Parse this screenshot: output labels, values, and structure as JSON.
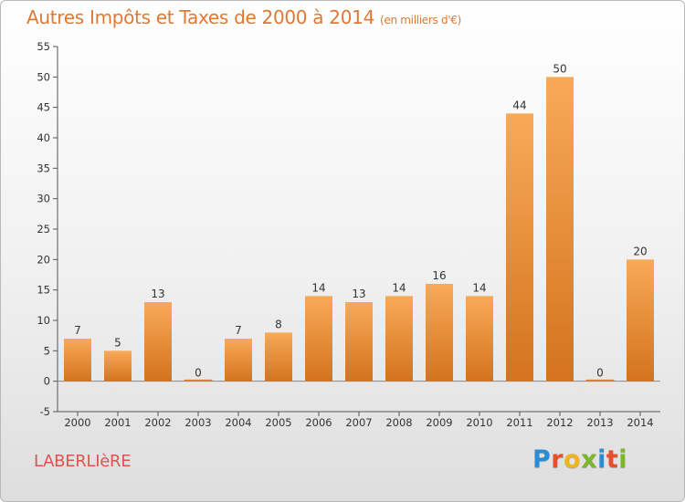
{
  "header": {
    "title": "Autres Impôts et Taxes de 2000 à 2014",
    "unit": "(en milliers d'€)"
  },
  "footer": {
    "commune": "LABERLIèRE",
    "logo_text": "Proxiti",
    "logo_colors": [
      "#2a8dd4",
      "#e8502b",
      "#f1b51c",
      "#7cb629",
      "#2a8dd4",
      "#e8502b",
      "#7cb629"
    ]
  },
  "colors": {
    "title": "#e07833",
    "commune": "#e0524f",
    "bar_light": "#f8aa58",
    "bar_dark": "#d4731d"
  },
  "chart_data": {
    "type": "bar",
    "title": "Autres Impôts et Taxes de 2000 à 2014",
    "subtitle": "(en milliers d'€)",
    "categories": [
      "2000",
      "2001",
      "2002",
      "2003",
      "2004",
      "2005",
      "2006",
      "2007",
      "2008",
      "2009",
      "2010",
      "2011",
      "2012",
      "2013",
      "2014"
    ],
    "values": [
      7,
      5,
      13,
      0,
      7,
      8,
      14,
      13,
      14,
      16,
      14,
      44,
      50,
      0,
      20
    ],
    "data_labels": [
      "7",
      "5",
      "13",
      "0",
      "7",
      "8",
      "14",
      "13",
      "14",
      "16",
      "14",
      "44",
      "50",
      "0",
      "20"
    ],
    "ylim": [
      -5,
      55
    ],
    "yticks": [
      -5,
      0,
      5,
      10,
      15,
      20,
      25,
      30,
      35,
      40,
      45,
      50,
      55
    ],
    "ytick_labels": [
      "-5",
      "0",
      "5",
      "10",
      "15",
      "20",
      "25",
      "30",
      "35",
      "40",
      "45",
      "50",
      "55"
    ],
    "grid": false,
    "legend": "none"
  }
}
